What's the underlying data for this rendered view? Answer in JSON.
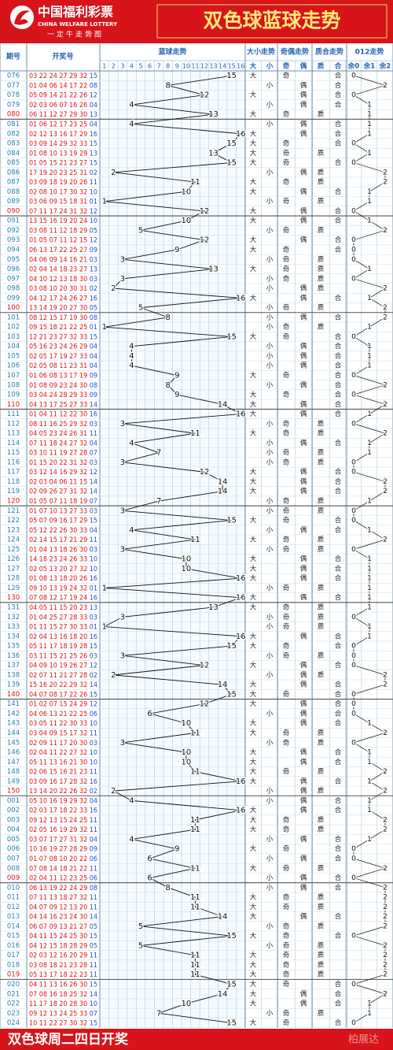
{
  "header": {
    "logo_cn": "中国福利彩票",
    "logo_en": "CHINA WELFARE LOTTERY",
    "logo_sub": "一定牛走势图",
    "title": "双色球蓝球走势"
  },
  "columns": {
    "period": "期号",
    "numbers": "开奖号",
    "trend": "蓝球走势",
    "size": "大小走势",
    "parity": "奇偶走势",
    "prime": "质合走势",
    "mod": "012走势",
    "trend_axis": [
      1,
      2,
      3,
      4,
      5,
      6,
      7,
      8,
      9,
      10,
      11,
      12,
      13,
      14,
      15,
      16
    ],
    "size_labels": [
      "大",
      "小"
    ],
    "parity_labels": [
      "奇",
      "偶"
    ],
    "prime_labels": [
      "质",
      "合"
    ],
    "mod_labels": [
      "余0",
      "余1",
      "余2"
    ]
  },
  "rows": [
    {
      "p": "076",
      "red": "03 22 24 27 29 32",
      "blue": "15",
      "v": 15,
      "s": "大",
      "o": "奇",
      "q": "合",
      "m": 0
    },
    {
      "p": "077",
      "red": "01 04 06 14 17 22",
      "blue": "08",
      "v": 8,
      "s": "小",
      "o": "偶",
      "q": "合",
      "m": 2
    },
    {
      "p": "078",
      "red": "05 09 14 21 22 26",
      "blue": "12",
      "v": 12,
      "s": "大",
      "o": "偶",
      "q": "合",
      "m": 0
    },
    {
      "p": "079",
      "red": "02 03 06 07 16 26",
      "blue": "04",
      "v": 4,
      "s": "小",
      "o": "偶",
      "q": "合",
      "m": 1
    },
    {
      "p": "080",
      "red": "06 11 12 27 29 30",
      "blue": "13",
      "v": 13,
      "s": "大",
      "o": "奇",
      "q": "质",
      "m": 1
    },
    {
      "p": "081",
      "red": "01 06 12 17 23 25",
      "blue": "04",
      "v": 4,
      "s": "小",
      "o": "偶",
      "q": "合",
      "m": 1
    },
    {
      "p": "082",
      "red": "02 12 13 16 17 29",
      "blue": "16",
      "v": 16,
      "s": "大",
      "o": "偶",
      "q": "合",
      "m": 1
    },
    {
      "p": "083",
      "red": "03 09 14 29 32 33",
      "blue": "15",
      "v": 15,
      "s": "大",
      "o": "奇",
      "q": "合",
      "m": 0
    },
    {
      "p": "084",
      "red": "01 08 10 13 19 29",
      "blue": "13",
      "v": 13,
      "s": "大",
      "o": "奇",
      "q": "质",
      "m": 1
    },
    {
      "p": "085",
      "red": "01 05 15 21 23 27",
      "blue": "15",
      "v": 15,
      "s": "大",
      "o": "奇",
      "q": "合",
      "m": 0
    },
    {
      "p": "086",
      "red": "17 19 20 23 25 31",
      "blue": "02",
      "v": 2,
      "s": "小",
      "o": "偶",
      "q": "质",
      "m": 2
    },
    {
      "p": "087",
      "red": "03 09 18 19 20 26",
      "blue": "11",
      "v": 11,
      "s": "大",
      "o": "奇",
      "q": "质",
      "m": 2
    },
    {
      "p": "088",
      "red": "02 08 10 17 30 32",
      "blue": "10",
      "v": 10,
      "s": "大",
      "o": "偶",
      "q": "合",
      "m": 1
    },
    {
      "p": "089",
      "red": "03 06 09 15 18 31",
      "blue": "01",
      "v": 1,
      "s": "小",
      "o": "奇",
      "q": "质",
      "m": 1
    },
    {
      "p": "090",
      "red": "07 11 17 24 31 32",
      "blue": "12",
      "v": 12,
      "s": "大",
      "o": "偶",
      "q": "合",
      "m": 0
    },
    {
      "p": "091",
      "red": "13 15 16 19 20 24",
      "blue": "10",
      "v": 10,
      "s": "大",
      "o": "偶",
      "q": "合",
      "m": 1
    },
    {
      "p": "092",
      "red": "03 08 11 12 18 29",
      "blue": "05",
      "v": 5,
      "s": "小",
      "o": "奇",
      "q": "质",
      "m": 2
    },
    {
      "p": "093",
      "red": "01 05 07 11 12 15",
      "blue": "12",
      "v": 12,
      "s": "大",
      "o": "偶",
      "q": "合",
      "m": 0
    },
    {
      "p": "094",
      "red": "06 13 17 22 25 27",
      "blue": "09",
      "v": 9,
      "s": "大",
      "o": "奇",
      "q": "合",
      "m": 0
    },
    {
      "p": "095",
      "red": "04 06 09 14 16 21",
      "blue": "03",
      "v": 3,
      "s": "小",
      "o": "奇",
      "q": "质",
      "m": 0
    },
    {
      "p": "096",
      "red": "02 04 14 18 23 27",
      "blue": "13",
      "v": 13,
      "s": "大",
      "o": "奇",
      "q": "质",
      "m": 1
    },
    {
      "p": "097",
      "red": "04 10 12 13 18 30",
      "blue": "03",
      "v": 3,
      "s": "小",
      "o": "奇",
      "q": "质",
      "m": 0
    },
    {
      "p": "098",
      "red": "03 08 10 20 30 31",
      "blue": "02",
      "v": 2,
      "s": "小",
      "o": "偶",
      "q": "质",
      "m": 2
    },
    {
      "p": "099",
      "red": "04 12 17 24 26 27",
      "blue": "16",
      "v": 16,
      "s": "大",
      "o": "偶",
      "q": "合",
      "m": 1
    },
    {
      "p": "100",
      "red": "13 14 19 20 27 30",
      "blue": "05",
      "v": 5,
      "s": "小",
      "o": "奇",
      "q": "质",
      "m": 2
    },
    {
      "p": "101",
      "red": "08 12 15 17 19 30",
      "blue": "08",
      "v": 8,
      "s": "小",
      "o": "偶",
      "q": "合",
      "m": 2
    },
    {
      "p": "102",
      "red": "09 15 18 21 22 25",
      "blue": "01",
      "v": 1,
      "s": "小",
      "o": "奇",
      "q": "质",
      "m": 1
    },
    {
      "p": "103",
      "red": "12 21 23 27 32 33",
      "blue": "15",
      "v": 15,
      "s": "大",
      "o": "奇",
      "q": "合",
      "m": 0
    },
    {
      "p": "104",
      "red": "05 16 23 24 26 29",
      "blue": "04",
      "v": 4,
      "s": "小",
      "o": "偶",
      "q": "合",
      "m": 1
    },
    {
      "p": "105",
      "red": "02 05 17 19 27 33",
      "blue": "04",
      "v": 4,
      "s": "小",
      "o": "偶",
      "q": "合",
      "m": 1
    },
    {
      "p": "106",
      "red": "02 05 08 11 23 31",
      "blue": "04",
      "v": 4,
      "s": "小",
      "o": "偶",
      "q": "合",
      "m": 1
    },
    {
      "p": "107",
      "red": "01 06 08 13 17 19",
      "blue": "09",
      "v": 9,
      "s": "大",
      "o": "奇",
      "q": "合",
      "m": 0
    },
    {
      "p": "108",
      "red": "01 08 09 23 24 30",
      "blue": "08",
      "v": 8,
      "s": "小",
      "o": "偶",
      "q": "合",
      "m": 2
    },
    {
      "p": "109",
      "red": "03 04 24 28 29 33",
      "blue": "09",
      "v": 9,
      "s": "大",
      "o": "奇",
      "q": "合",
      "m": 0
    },
    {
      "p": "110",
      "red": "04 13 17 25 27 33",
      "blue": "14",
      "v": 14,
      "s": "大",
      "o": "偶",
      "q": "合",
      "m": 2
    },
    {
      "p": "111",
      "red": "01 04 11 12 22 30",
      "blue": "16",
      "v": 16,
      "s": "大",
      "o": "偶",
      "q": "合",
      "m": 1
    },
    {
      "p": "112",
      "red": "08 11 16 25 29 32",
      "blue": "03",
      "v": 3,
      "s": "小",
      "o": "奇",
      "q": "质",
      "m": 0
    },
    {
      "p": "113",
      "red": "04 05 23 24 26 31",
      "blue": "11",
      "v": 11,
      "s": "大",
      "o": "奇",
      "q": "质",
      "m": 2
    },
    {
      "p": "114",
      "red": "07 11 18 24 27 32",
      "blue": "04",
      "v": 4,
      "s": "小",
      "o": "偶",
      "q": "合",
      "m": 1
    },
    {
      "p": "115",
      "red": "03 10 11 19 27 28",
      "blue": "07",
      "v": 7,
      "s": "小",
      "o": "奇",
      "q": "质",
      "m": 1
    },
    {
      "p": "116",
      "red": "01 15 20 22 31 32",
      "blue": "03",
      "v": 3,
      "s": "小",
      "o": "奇",
      "q": "质",
      "m": 0
    },
    {
      "p": "117",
      "red": "03 12 14 16 29 32",
      "blue": "12",
      "v": 12,
      "s": "大",
      "o": "偶",
      "q": "合",
      "m": 0
    },
    {
      "p": "118",
      "red": "02 03 04 06 11 15",
      "blue": "14",
      "v": 14,
      "s": "大",
      "o": "偶",
      "q": "合",
      "m": 2
    },
    {
      "p": "119",
      "red": "02 09 26 27 31 32",
      "blue": "14",
      "v": 14,
      "s": "大",
      "o": "偶",
      "q": "合",
      "m": 2
    },
    {
      "p": "120",
      "red": "01 05 07 11 18 19",
      "blue": "07",
      "v": 7,
      "s": "小",
      "o": "奇",
      "q": "质",
      "m": 1
    },
    {
      "p": "121",
      "red": "01 07 10 13 27 33",
      "blue": "03",
      "v": 3,
      "s": "小",
      "o": "奇",
      "q": "质",
      "m": 0
    },
    {
      "p": "122",
      "red": "05 07 09 16 17 29",
      "blue": "15",
      "v": 15,
      "s": "大",
      "o": "奇",
      "q": "合",
      "m": 0
    },
    {
      "p": "123",
      "red": "05 12 22 26 30 33",
      "blue": "04",
      "v": 4,
      "s": "小",
      "o": "偶",
      "q": "合",
      "m": 1
    },
    {
      "p": "124",
      "red": "02 14 15 17 21 29",
      "blue": "11",
      "v": 11,
      "s": "大",
      "o": "奇",
      "q": "质",
      "m": 2
    },
    {
      "p": "125",
      "red": "01 04 13 18 26 30",
      "blue": "03",
      "v": 3,
      "s": "小",
      "o": "奇",
      "q": "质",
      "m": 0
    },
    {
      "p": "126",
      "red": "14 18 23 24 26 33",
      "blue": "10",
      "v": 10,
      "s": "大",
      "o": "偶",
      "q": "合",
      "m": 1
    },
    {
      "p": "127",
      "red": "02 05 13 20 27 32",
      "blue": "10",
      "v": 10,
      "s": "大",
      "o": "偶",
      "q": "合",
      "m": 1
    },
    {
      "p": "128",
      "red": "01 08 13 18 20 26",
      "blue": "16",
      "v": 16,
      "s": "大",
      "o": "偶",
      "q": "合",
      "m": 1
    },
    {
      "p": "129",
      "red": "09 10 13 19 24 32",
      "blue": "01",
      "v": 1,
      "s": "小",
      "o": "奇",
      "q": "质",
      "m": 1
    },
    {
      "p": "130",
      "red": "07 08 12 17 19 24",
      "blue": "16",
      "v": 16,
      "s": "大",
      "o": "偶",
      "q": "合",
      "m": 1
    },
    {
      "p": "131",
      "red": "04 05 11 15 20 23",
      "blue": "13",
      "v": 13,
      "s": "大",
      "o": "奇",
      "q": "质",
      "m": 1
    },
    {
      "p": "132",
      "red": "01 04 25 27 28 33",
      "blue": "03",
      "v": 3,
      "s": "小",
      "o": "奇",
      "q": "质",
      "m": 0
    },
    {
      "p": "133",
      "red": "01 11 15 27 30 33",
      "blue": "01",
      "v": 1,
      "s": "小",
      "o": "奇",
      "q": "质",
      "m": 1
    },
    {
      "p": "134",
      "red": "02 04 13 16 18 20",
      "blue": "16",
      "v": 16,
      "s": "大",
      "o": "偶",
      "q": "合",
      "m": 1
    },
    {
      "p": "135",
      "red": "05 11 17 18 19 28",
      "blue": "15",
      "v": 15,
      "s": "大",
      "o": "奇",
      "q": "合",
      "m": 0
    },
    {
      "p": "136",
      "red": "03 11 15 21 25 26",
      "blue": "03",
      "v": 3,
      "s": "小",
      "o": "奇",
      "q": "质",
      "m": 0
    },
    {
      "p": "137",
      "red": "04 09 10 19 26 27",
      "blue": "12",
      "v": 12,
      "s": "大",
      "o": "偶",
      "q": "合",
      "m": 0
    },
    {
      "p": "138",
      "red": "02 07 11 21 27 28",
      "blue": "02",
      "v": 2,
      "s": "小",
      "o": "偶",
      "q": "质",
      "m": 2
    },
    {
      "p": "139",
      "red": "15 16 20 22 29 32",
      "blue": "14",
      "v": 14,
      "s": "大",
      "o": "偶",
      "q": "合",
      "m": 2
    },
    {
      "p": "140",
      "red": "04 07 08 17 22 26",
      "blue": "15",
      "v": 15,
      "s": "大",
      "o": "奇",
      "q": "合",
      "m": 0
    },
    {
      "p": "141",
      "red": "01 02 07 15 24 29",
      "blue": "12",
      "v": 12,
      "s": "大",
      "o": "偶",
      "q": "合",
      "m": 0
    },
    {
      "p": "142",
      "red": "04 06 13 21 22 25",
      "blue": "06",
      "v": 6,
      "s": "小",
      "o": "偶",
      "q": "合",
      "m": 0
    },
    {
      "p": "143",
      "red": "03 05 11 22 30 33",
      "blue": "10",
      "v": 10,
      "s": "大",
      "o": "偶",
      "q": "合",
      "m": 1
    },
    {
      "p": "144",
      "red": "03 04 09 15 17 32",
      "blue": "11",
      "v": 11,
      "s": "大",
      "o": "奇",
      "q": "质",
      "m": 2
    },
    {
      "p": "145",
      "red": "02 09 11 17 20 30",
      "blue": "03",
      "v": 3,
      "s": "小",
      "o": "奇",
      "q": "质",
      "m": 0
    },
    {
      "p": "146",
      "red": "02 04 11 22 27 32",
      "blue": "10",
      "v": 10,
      "s": "大",
      "o": "偶",
      "q": "合",
      "m": 1
    },
    {
      "p": "147",
      "red": "05 11 13 16 21 30",
      "blue": "10",
      "v": 10,
      "s": "大",
      "o": "偶",
      "q": "合",
      "m": 1
    },
    {
      "p": "148",
      "red": "02 06 15 16 21 23",
      "blue": "11",
      "v": 11,
      "s": "大",
      "o": "奇",
      "q": "质",
      "m": 2
    },
    {
      "p": "149",
      "red": "03 09 16 17 28 32",
      "blue": "16",
      "v": 16,
      "s": "大",
      "o": "偶",
      "q": "合",
      "m": 1
    },
    {
      "p": "150",
      "red": "13 14 20 22 26 32",
      "blue": "02",
      "v": 2,
      "s": "小",
      "o": "偶",
      "q": "质",
      "m": 2
    },
    {
      "p": "001",
      "red": "05 10 16 19 29 32",
      "blue": "04",
      "v": 4,
      "s": "小",
      "o": "偶",
      "q": "合",
      "m": 1
    },
    {
      "p": "002",
      "red": "02 03 17 18 22 33",
      "blue": "16",
      "v": 16,
      "s": "大",
      "o": "偶",
      "q": "合",
      "m": 1
    },
    {
      "p": "003",
      "red": "09 12 13 15 24 25",
      "blue": "11",
      "v": 11,
      "s": "大",
      "o": "奇",
      "q": "质",
      "m": 2
    },
    {
      "p": "004",
      "red": "02 05 16 19 29 32",
      "blue": "11",
      "v": 11,
      "s": "大",
      "o": "奇",
      "q": "质",
      "m": 2
    },
    {
      "p": "005",
      "red": "03 07 17 27 31 32",
      "blue": "04",
      "v": 4,
      "s": "小",
      "o": "偶",
      "q": "合",
      "m": 1
    },
    {
      "p": "006",
      "red": "10 16 19 27 28 29",
      "blue": "09",
      "v": 9,
      "s": "大",
      "o": "奇",
      "q": "合",
      "m": 0
    },
    {
      "p": "007",
      "red": "01 07 08 10 20 22",
      "blue": "06",
      "v": 6,
      "s": "小",
      "o": "偶",
      "q": "合",
      "m": 0
    },
    {
      "p": "008",
      "red": "07 08 14 18 21 22",
      "blue": "11",
      "v": 11,
      "s": "大",
      "o": "奇",
      "q": "质",
      "m": 2
    },
    {
      "p": "009",
      "red": "02 04 11 12 23 25",
      "blue": "06",
      "v": 6,
      "s": "小",
      "o": "偶",
      "q": "合",
      "m": 0
    },
    {
      "p": "010",
      "red": "06 13 19 22 24 29",
      "blue": "08",
      "v": 8,
      "s": "小",
      "o": "偶",
      "q": "合",
      "m": 2
    },
    {
      "p": "011",
      "red": "07 11 13 18 27 32",
      "blue": "11",
      "v": 11,
      "s": "大",
      "o": "奇",
      "q": "质",
      "m": 2
    },
    {
      "p": "012",
      "red": "04 07 09 12 13 20",
      "blue": "11",
      "v": 11,
      "s": "大",
      "o": "奇",
      "q": "质",
      "m": 2
    },
    {
      "p": "013",
      "red": "04 14 16 23 24 30",
      "blue": "14",
      "v": 14,
      "s": "大",
      "o": "偶",
      "q": "合",
      "m": 2
    },
    {
      "p": "014",
      "red": "06 07 09 13 21 27",
      "blue": "05",
      "v": 5,
      "s": "小",
      "o": "奇",
      "q": "质",
      "m": 2
    },
    {
      "p": "015",
      "red": "04 11 15 24 25 30",
      "blue": "15",
      "v": 15,
      "s": "大",
      "o": "奇",
      "q": "合",
      "m": 0
    },
    {
      "p": "016",
      "red": "04 12 15 18 28 29",
      "blue": "05",
      "v": 5,
      "s": "小",
      "o": "奇",
      "q": "质",
      "m": 2
    },
    {
      "p": "017",
      "red": "02 03 12 16 20 29",
      "blue": "11",
      "v": 11,
      "s": "大",
      "o": "奇",
      "q": "质",
      "m": 2
    },
    {
      "p": "018",
      "red": "03 08 18 21 23 28",
      "blue": "11",
      "v": 11,
      "s": "大",
      "o": "奇",
      "q": "质",
      "m": 2
    },
    {
      "p": "019",
      "red": "05 13 17 18 22 23",
      "blue": "11",
      "v": 11,
      "s": "大",
      "o": "奇",
      "q": "质",
      "m": 2
    },
    {
      "p": "020",
      "red": "04 11 13 16 26 30",
      "blue": "15",
      "v": 15,
      "s": "大",
      "o": "奇",
      "q": "合",
      "m": 0
    },
    {
      "p": "021",
      "red": "07 08 16 18 25 32",
      "blue": "14",
      "v": 14,
      "s": "大",
      "o": "偶",
      "q": "合",
      "m": 2
    },
    {
      "p": "022",
      "red": "11 17 18 20 28 30",
      "blue": "10",
      "v": 10,
      "s": "大",
      "o": "偶",
      "q": "合",
      "m": 1
    },
    {
      "p": "023",
      "red": "09 12 13 24 25 33",
      "blue": "07",
      "v": 7,
      "s": "小",
      "o": "奇",
      "q": "质",
      "m": 1
    },
    {
      "p": "024",
      "red": "10 11 22 27 30 32",
      "blue": "15",
      "v": 15,
      "s": "大",
      "o": "奇",
      "q": "合",
      "m": 0
    }
  ],
  "footer": "双色球周二四日开奖",
  "watermark": "柏展达"
}
